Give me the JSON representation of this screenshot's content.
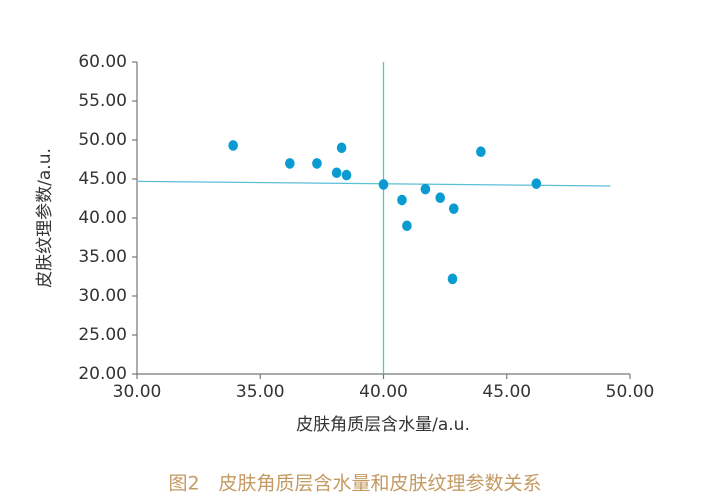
{
  "chart_data": {
    "type": "scatter",
    "x_label": "皮肤角质层含水量/a.u.",
    "y_label": "皮肤纹理参数/a.u.",
    "caption": "图2　皮肤角质层含水量和皮肤纹理参数关系",
    "xlim": [
      30,
      50
    ],
    "ylim": [
      20,
      60
    ],
    "xticks": [
      {
        "value": 30,
        "label": "30.00"
      },
      {
        "value": 35,
        "label": "35.00"
      },
      {
        "value": 40,
        "label": "40.00"
      },
      {
        "value": 45,
        "label": "45.00"
      },
      {
        "value": 50,
        "label": "50.00"
      }
    ],
    "yticks": [
      {
        "value": 20,
        "label": "20.00"
      },
      {
        "value": 25,
        "label": "25.00"
      },
      {
        "value": 30,
        "label": "30.00"
      },
      {
        "value": 35,
        "label": "35.00"
      },
      {
        "value": 40,
        "label": "40.00"
      },
      {
        "value": 45,
        "label": "45.00"
      },
      {
        "value": 50,
        "label": "50.00"
      },
      {
        "value": 55,
        "label": "55.00"
      },
      {
        "value": 60,
        "label": "60.00"
      }
    ],
    "series": [
      {
        "color": "#0a9bd0",
        "x": [
          33.9,
          36.2,
          37.3,
          38.1,
          38.3,
          38.5,
          40.0,
          40.75,
          40.95,
          41.7,
          42.3,
          42.85,
          42.8,
          43.95,
          46.2
        ],
        "values": [
          49.3,
          47.0,
          47.0,
          45.8,
          49.0,
          45.5,
          44.3,
          42.3,
          39.0,
          43.7,
          42.6,
          41.2,
          32.2,
          48.5,
          44.4
        ]
      }
    ],
    "vline_x": 40,
    "trend_line": {
      "color": "#5bbfd6",
      "x": [
        30,
        49.2
      ],
      "y": [
        44.7,
        44.1
      ]
    }
  }
}
